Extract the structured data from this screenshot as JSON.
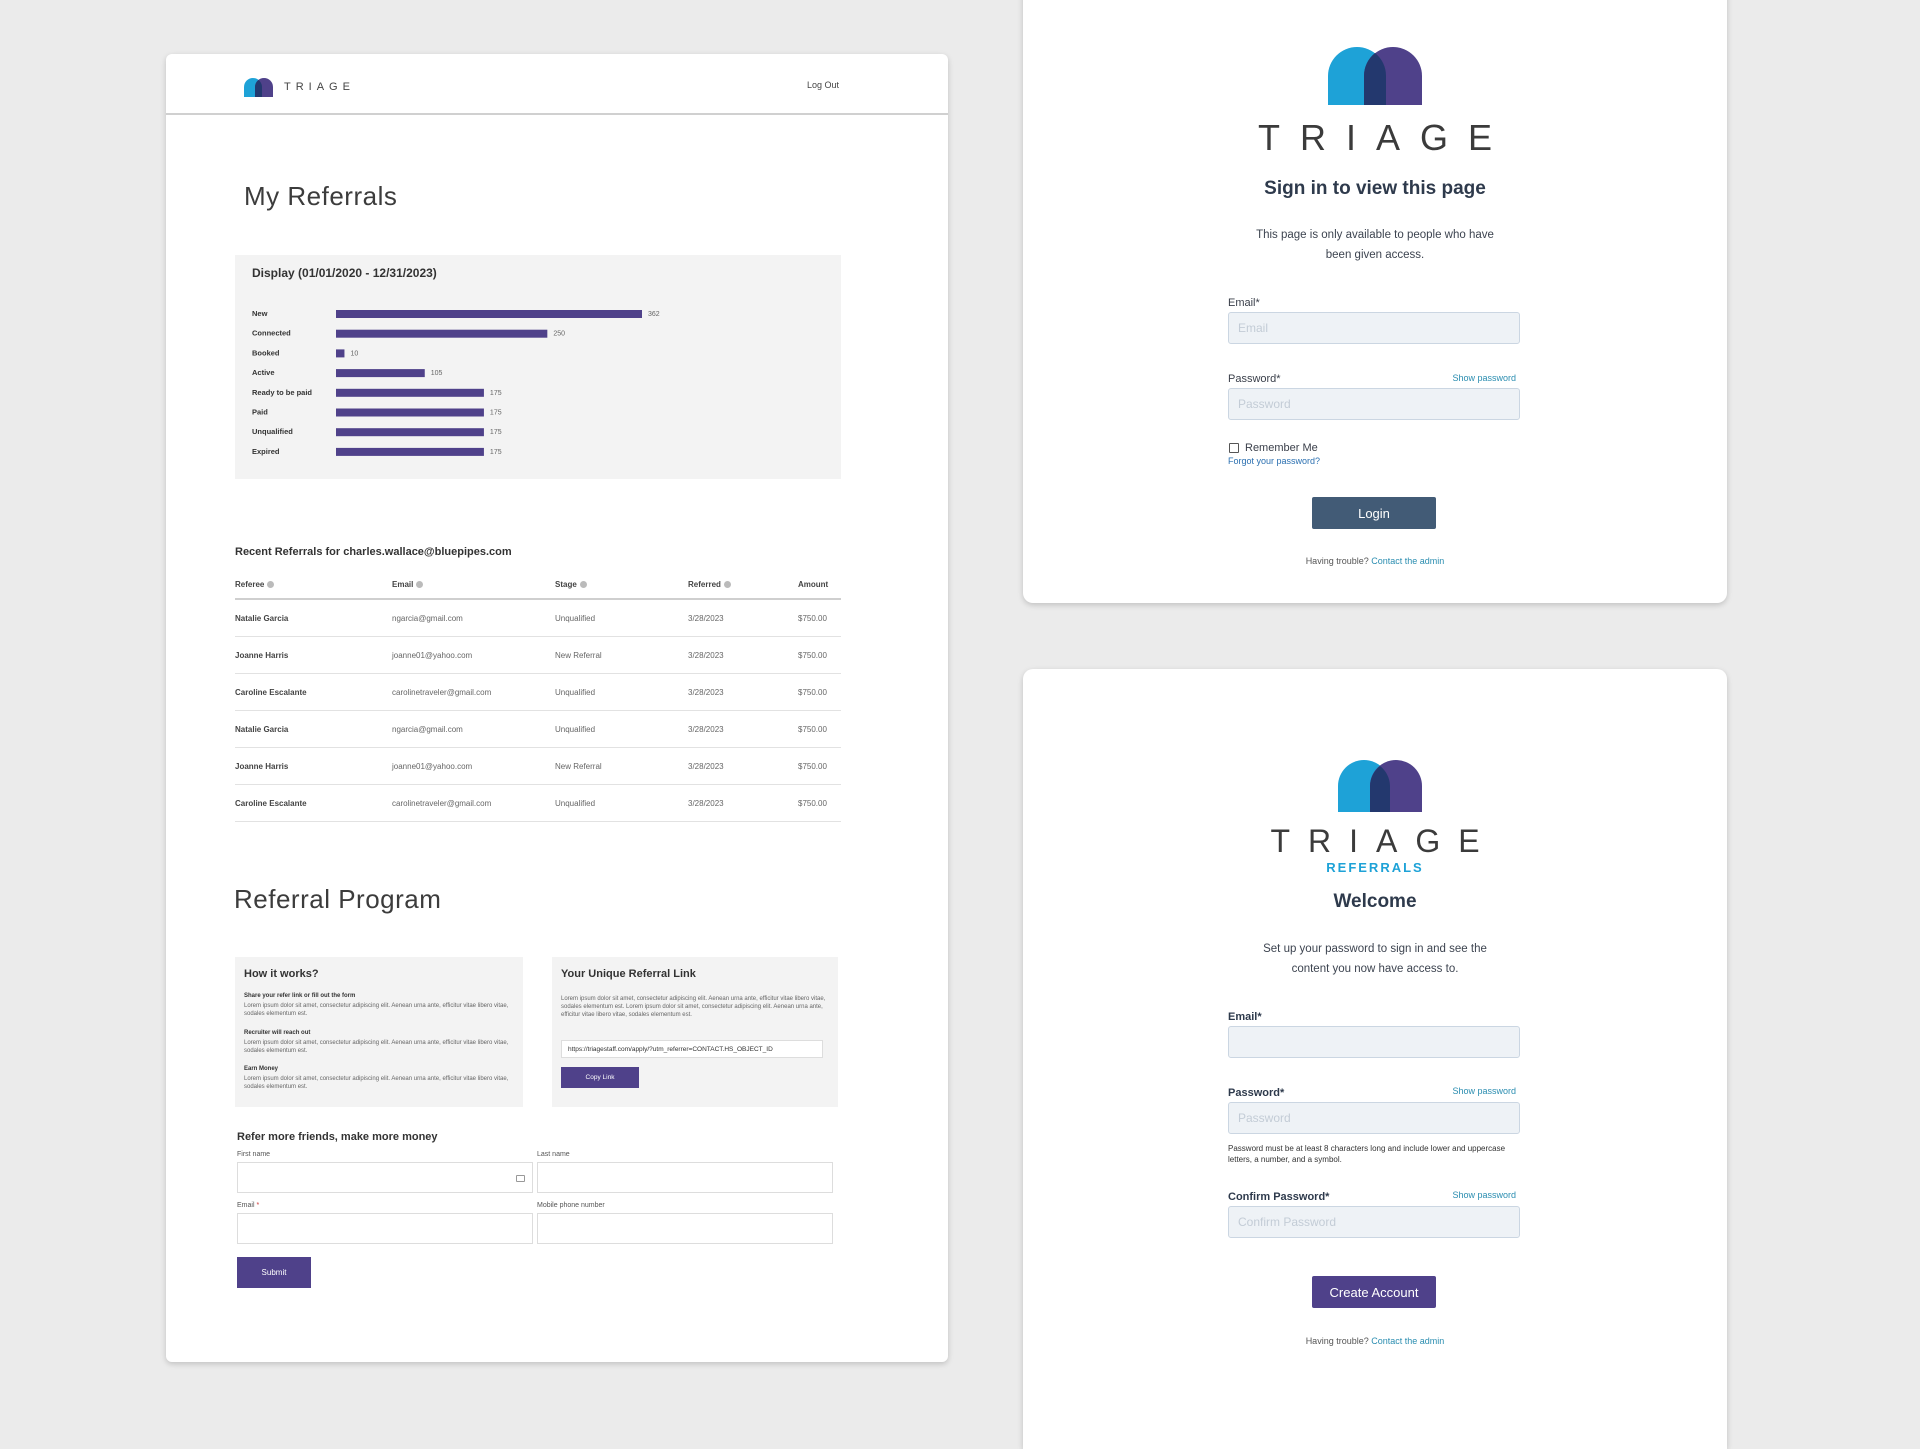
{
  "portal": {
    "brand": "TRIAGE",
    "logout": "Log Out",
    "title": "My Referrals",
    "chart_panel_title": "Display (01/01/2020 - 12/31/2023)",
    "recent_title": "Recent Referrals for charles.wallace@bluepipes.com",
    "table": {
      "headers": [
        "Referee",
        "Email",
        "Stage",
        "Referred",
        "Amount"
      ],
      "rows": [
        [
          "Natalie Garcia",
          "ngarcia@gmail.com",
          "Unqualified",
          "3/28/2023",
          "$750.00"
        ],
        [
          "Joanne Harris",
          "joanne01@yahoo.com",
          "New Referral",
          "3/28/2023",
          "$750.00"
        ],
        [
          "Caroline Escalante",
          "carolinetraveler@gmail.com",
          "Unqualified",
          "3/28/2023",
          "$750.00"
        ],
        [
          "Natalie Garcia",
          "ngarcia@gmail.com",
          "Unqualified",
          "3/28/2023",
          "$750.00"
        ],
        [
          "Joanne Harris",
          "joanne01@yahoo.com",
          "New Referral",
          "3/28/2023",
          "$750.00"
        ],
        [
          "Caroline Escalante",
          "carolinetraveler@gmail.com",
          "Unqualified",
          "3/28/2023",
          "$750.00"
        ]
      ]
    },
    "program_title": "Referral Program",
    "how": {
      "title": "How it works?",
      "steps": [
        {
          "head": "Share your refer link or fill out the form",
          "body": "Lorem ipsum dolor sit amet, consectetur adipiscing elit. Aenean urna ante, efficitur vitae libero vitae, sodales elementum est."
        },
        {
          "head": "Recruiter will reach out",
          "body": "Lorem ipsum dolor sit amet, consectetur adipiscing elit. Aenean urna ante, efficitur vitae libero vitae, sodales elementum est."
        },
        {
          "head": "Earn Money",
          "body": "Lorem ipsum dolor sit amet, consectetur adipiscing elit. Aenean urna ante, efficitur vitae libero vitae, sodales elementum est."
        }
      ]
    },
    "link_box": {
      "title": "Your Unique Referral Link",
      "body": "Lorem ipsum dolor sit amet, consectetur adipiscing elit. Aenean urna ante, efficitur vitae libero vitae, sodales elementum est. Lorem ipsum dolor sit amet, consectetur adipiscing elit. Aenean urna ante, efficitur vitae libero vitae, sodales elementum est.",
      "url": "https://triagestaff.com/apply/?utm_referrer=CONTACT.HS_OBJECT_ID",
      "copy_label": "Copy Link"
    },
    "form": {
      "title": "Refer more friends, make more money",
      "first_name_label": "First name",
      "last_name_label": "Last name",
      "email_label": "Email",
      "email_required": "*",
      "phone_label": "Mobile phone number",
      "submit_label": "Submit"
    }
  },
  "chart_data": {
    "type": "bar",
    "orientation": "horizontal",
    "title": "Display (01/01/2020 - 12/31/2023)",
    "categories": [
      "New",
      "Connected",
      "Booked",
      "Active",
      "Ready to be paid",
      "Paid",
      "Unqualified",
      "Expired"
    ],
    "values": [
      362,
      250,
      10,
      105,
      175,
      175,
      175,
      175
    ],
    "color": "#4f418a",
    "grid": false,
    "legend": "none"
  },
  "signin": {
    "brand": "TRIAGE",
    "title": "Sign in to view this page",
    "description_line1": "This page is only available to people who have",
    "description_line2": "been given access.",
    "email_label": "Email*",
    "email_placeholder": "Email",
    "password_label": "Password*",
    "show_password": "Show password",
    "password_placeholder": "Password",
    "remember_me": "Remember Me",
    "forgot": "Forgot your password?",
    "login_label": "Login",
    "trouble_text": "Having trouble?",
    "trouble_link": "Contact the admin"
  },
  "welcome": {
    "brand": "TRIAGE",
    "brand_sub": "REFERRALS",
    "title": "Welcome",
    "description_line1": "Set up your password to sign in and see the",
    "description_line2": "content you now have access to.",
    "email_label": "Email*",
    "password_label": "Password*",
    "show_password": "Show password",
    "password_placeholder": "Password",
    "password_hint": "Password must be at least 8 characters long and include lower and uppercase letters, a number, and a symbol.",
    "confirm_label": "Confirm Password*",
    "confirm_show_password": "Show password",
    "confirm_placeholder": "Confirm Password",
    "create_label": "Create Account",
    "trouble_text": "Having trouble?",
    "trouble_link": "Contact the admin"
  },
  "colors": {
    "brand_purple": "#4f418a",
    "brand_cyan": "#1ea2d7",
    "login_button": "#425b76",
    "link": "#2a8db0",
    "panel_bg": "#f3f3f3",
    "page_bg": "#ebebeb"
  }
}
